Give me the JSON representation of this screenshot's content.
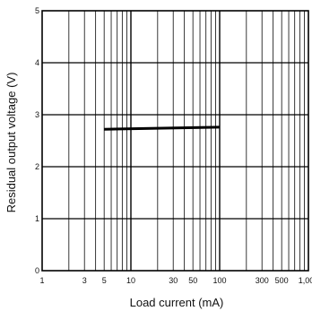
{
  "chart_data": {
    "type": "line",
    "title": "",
    "xlabel": "Load current (mA)",
    "ylabel": "Residual output voltage (V)",
    "x_scale": "log",
    "xlim": [
      1,
      1000
    ],
    "ylim": [
      0,
      5
    ],
    "grid": true,
    "x_ticks": [
      {
        "value": 1,
        "label": "1"
      },
      {
        "value": 3,
        "label": "3"
      },
      {
        "value": 5,
        "label": "5"
      },
      {
        "value": 10,
        "label": "10"
      },
      {
        "value": 30,
        "label": "30"
      },
      {
        "value": 50,
        "label": "50"
      },
      {
        "value": 100,
        "label": "100"
      },
      {
        "value": 300,
        "label": "300"
      },
      {
        "value": 500,
        "label": "500"
      },
      {
        "value": 1000,
        "label": "1,000"
      }
    ],
    "y_ticks": [
      {
        "value": 0,
        "label": "0"
      },
      {
        "value": 1,
        "label": "1"
      },
      {
        "value": 2,
        "label": "2"
      },
      {
        "value": 3,
        "label": "3"
      },
      {
        "value": 4,
        "label": "4"
      },
      {
        "value": 5,
        "label": "5"
      }
    ],
    "series": [
      {
        "x": [
          5,
          100
        ],
        "y": [
          2.72,
          2.76
        ]
      }
    ]
  }
}
